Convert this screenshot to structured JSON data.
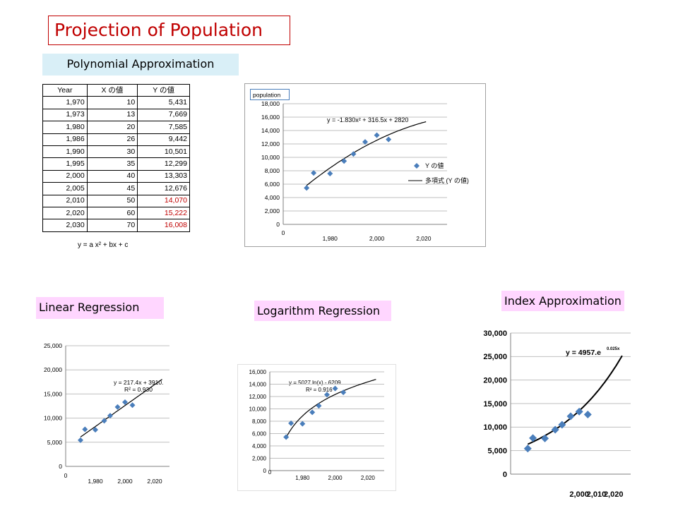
{
  "title": "Projection of Population",
  "sections": {
    "polynomial": "Polynomial Approximation",
    "linear": "Linear Regression",
    "logarithm": "Logarithm Regression",
    "index": "Index Approximation"
  },
  "table": {
    "headers": [
      "Year",
      "X の値",
      "Y の値"
    ],
    "rows": [
      [
        "1,970",
        "10",
        "5,431"
      ],
      [
        "1,973",
        "13",
        "7,669"
      ],
      [
        "1,980",
        "20",
        "7,585"
      ],
      [
        "1,986",
        "26",
        "9,442"
      ],
      [
        "1,990",
        "30",
        "10,501"
      ],
      [
        "1,995",
        "35",
        "12,299"
      ],
      [
        "2,000",
        "40",
        "13,303"
      ],
      [
        "2,005",
        "45",
        "12,676"
      ],
      [
        "2,010",
        "50",
        "14,070"
      ],
      [
        "2,020",
        "60",
        "15,222"
      ],
      [
        "2,030",
        "70",
        "16,008"
      ]
    ],
    "projected_from_row": 8,
    "formula": "y = a x² + bx + c"
  },
  "colors": {
    "marker": "#4a7ebb",
    "projected": "#c00000",
    "title": "#c00000"
  },
  "chart_data": [
    {
      "id": "poly",
      "type": "scatter",
      "title": "population",
      "legend_position": "right",
      "legend": [
        "Y の値",
        "多項式 (Y の値)"
      ],
      "x": [
        1970,
        1973,
        1980,
        1986,
        1990,
        1995,
        2000,
        2005
      ],
      "y": [
        5431,
        7669,
        7585,
        9442,
        10501,
        12299,
        13303,
        12676
      ],
      "xlim": [
        1960,
        2030
      ],
      "ylim": [
        0,
        18000
      ],
      "xticks": [
        1980,
        2000,
        2020
      ],
      "xtick_labels": [
        "1,980",
        "2,000",
        "2,020"
      ],
      "x_origin_label": "0",
      "yticks": [
        0,
        2000,
        4000,
        6000,
        8000,
        10000,
        12000,
        14000,
        16000,
        18000
      ],
      "ytick_labels": [
        "0",
        "2,000",
        "4,000",
        "6,000",
        "8,000",
        "10,000",
        "12,000",
        "14,000",
        "16,000",
        "18,000"
      ],
      "grid": true,
      "trend": {
        "model": "poly2",
        "a": -1.83,
        "b": 316.5,
        "c": 2820,
        "x_offset": 1960,
        "x_from": 1970,
        "x_to": 2021
      },
      "equation": "y = -1.830x² + 316.5x + 2820"
    },
    {
      "id": "linear",
      "type": "scatter",
      "x": [
        1970,
        1973,
        1980,
        1986,
        1990,
        1995,
        2000,
        2005
      ],
      "y": [
        5431,
        7669,
        7585,
        9442,
        10501,
        12299,
        13303,
        12676
      ],
      "xlim": [
        1960,
        2030
      ],
      "ylim": [
        0,
        25000
      ],
      "xticks": [
        1980,
        2000,
        2020
      ],
      "xtick_labels": [
        "1,980",
        "2,000",
        "2,020"
      ],
      "x_origin_label": "0",
      "yticks": [
        0,
        5000,
        10000,
        15000,
        20000,
        25000
      ],
      "ytick_labels": [
        "0",
        "5,000",
        "10,000",
        "15,000",
        "20,000",
        "25,000"
      ],
      "grid": true,
      "trend": {
        "model": "linear",
        "m": 217.4,
        "b": 3910,
        "x_offset": 1960,
        "x_from": 1970,
        "x_to": 2025
      },
      "equation": "y = 217.4x + 3910.",
      "r2": "R² = 0.930"
    },
    {
      "id": "log",
      "type": "scatter",
      "x": [
        1970,
        1973,
        1980,
        1986,
        1990,
        1995,
        2000,
        2005
      ],
      "y": [
        5431,
        7669,
        7585,
        9442,
        10501,
        12299,
        13303,
        12676
      ],
      "xlim": [
        1960,
        2030
      ],
      "ylim": [
        0,
        16000
      ],
      "xticks": [
        1980,
        2000,
        2020
      ],
      "xtick_labels": [
        "1,980",
        "2,000",
        "2,020"
      ],
      "x_origin_label": "0",
      "yticks": [
        0,
        2000,
        4000,
        6000,
        8000,
        10000,
        12000,
        14000,
        16000
      ],
      "ytick_labels": [
        "0",
        "2,000",
        "4,000",
        "6,000",
        "8,000",
        "10,000",
        "12,000",
        "14,000",
        "16,000"
      ],
      "grid": true,
      "trend": {
        "model": "log",
        "a": 5027,
        "b": -6209,
        "x_offset": 1960,
        "x_from": 1970,
        "x_to": 2025
      },
      "equation": "y = 5027.ln(x) - 6209.",
      "r2": "R² = 0.916"
    },
    {
      "id": "index",
      "type": "scatter",
      "x": [
        1970,
        1973,
        1980,
        1986,
        1990,
        1995,
        2000,
        2005
      ],
      "y": [
        5431,
        7669,
        7585,
        9442,
        10501,
        12299,
        13303,
        12676
      ],
      "xlim": [
        1960,
        2030
      ],
      "ylim": [
        0,
        30000
      ],
      "xticks": [
        2000,
        2010,
        2020
      ],
      "xtick_labels": [
        "2,000",
        "2,010",
        "2,020"
      ],
      "x_origin_label": "",
      "yticks": [
        0,
        5000,
        10000,
        15000,
        20000,
        25000,
        30000
      ],
      "ytick_labels": [
        "0",
        "5,000",
        "10,000",
        "15,000",
        "20,000",
        "25,000",
        "30,000"
      ],
      "grid": true,
      "trend": {
        "model": "exp",
        "a": 4957,
        "k": 0.025,
        "x_offset": 1960,
        "x_from": 1970,
        "x_to": 2025
      },
      "equation": "y = 4957.e",
      "equation_exp": "0.025x"
    }
  ]
}
